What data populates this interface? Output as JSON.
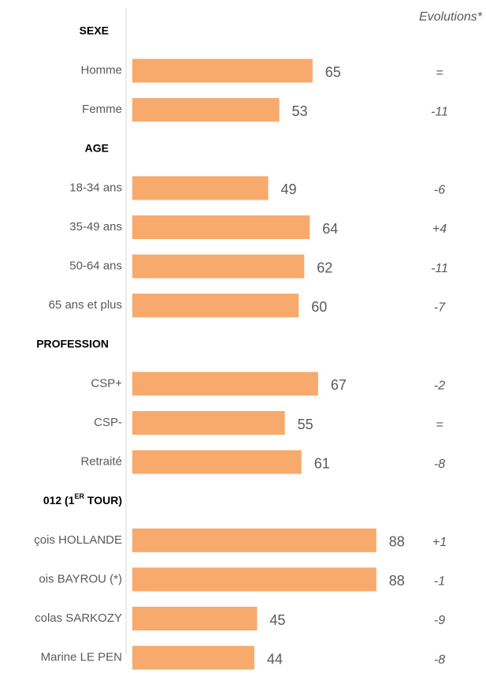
{
  "chart_data": {
    "type": "bar",
    "color": "#f7aa6c",
    "evolution_title": "Evolutions*",
    "groups": [
      {
        "name": "SEXE",
        "categories": [
          "Homme",
          "Femme"
        ],
        "values": [
          65,
          53
        ],
        "evolutions": [
          "=",
          "-11"
        ]
      },
      {
        "name": "AGE",
        "categories": [
          "18-34 ans",
          "35-49 ans",
          "50-64 ans",
          "65 ans et plus"
        ],
        "values": [
          49,
          64,
          62,
          60
        ],
        "evolutions": [
          "-6",
          "+4",
          "-11",
          "-7"
        ]
      },
      {
        "name": "PROFESSION",
        "categories": [
          "CSP+",
          "CSP-",
          "Retraité"
        ],
        "values": [
          67,
          55,
          61
        ],
        "evolutions": [
          "-2",
          "=",
          "-8"
        ]
      },
      {
        "name": [
          "012 (1",
          "ER",
          " TOUR)"
        ],
        "categories": [
          "çois HOLLANDE",
          "ois BAYROU (*)",
          "colas SARKOZY",
          "Marine LE PEN"
        ],
        "values": [
          88,
          88,
          45,
          44
        ],
        "evolutions": [
          "+1",
          "-1",
          "-9",
          "-8"
        ]
      }
    ]
  }
}
